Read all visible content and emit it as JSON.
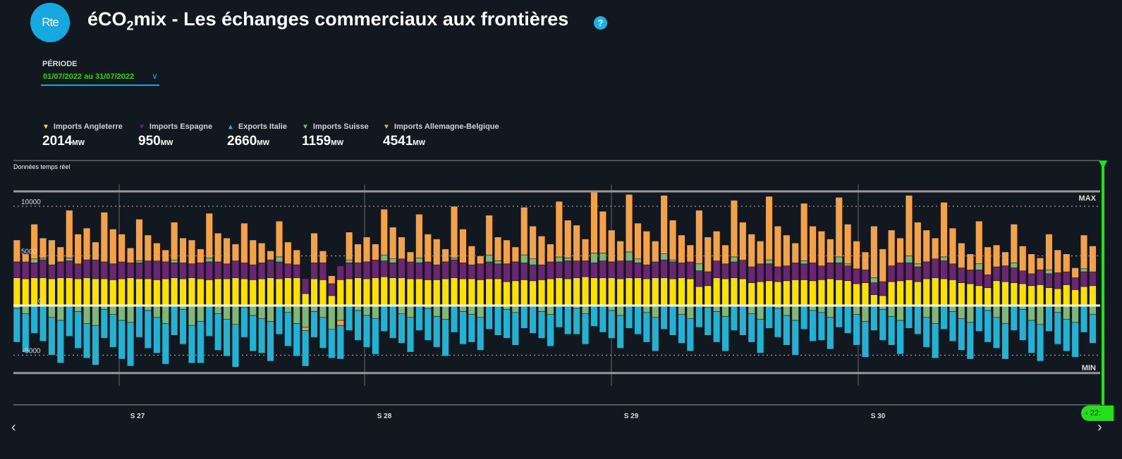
{
  "header": {
    "logo_text": "Rte",
    "title_pre": "éCO",
    "title_sub": "2",
    "title_post": "mix - Les échanges commerciaux aux frontières",
    "help_icon": "?"
  },
  "period": {
    "label": "PÉRIODE",
    "value": "01/07/2022 au 31/07/2022"
  },
  "legend": [
    {
      "label": "Imports Angleterre",
      "value": "2014",
      "unit": "MW",
      "color": "#ffe000",
      "direction": "down"
    },
    {
      "label": "Imports Espagne",
      "value": "950",
      "unit": "MW",
      "color": "#6b2673",
      "direction": "down"
    },
    {
      "label": "Exports Italie",
      "value": "2660",
      "unit": "MW",
      "color": "#23b2d3",
      "direction": "up"
    },
    {
      "label": "Imports Suisse",
      "value": "1159",
      "unit": "MW",
      "color": "#7db87a",
      "direction": "down"
    },
    {
      "label": "Imports Allemagne-Belgique",
      "value": "4541",
      "unit": "MW",
      "color": "#f4a24a",
      "direction": "down"
    }
  ],
  "live_label": "Données temps réel",
  "slider_time": "22:",
  "chart_data": {
    "type": "bar",
    "stacked": true,
    "x_start": "2022-07-01",
    "x_end": "2022-07-31",
    "bars_per_day": 4,
    "ylim": [
      -7000,
      12000
    ],
    "yticks": [
      10000,
      5000,
      0,
      -5000
    ],
    "max_label": "MAX",
    "min_label": "MIN",
    "max_value": 11500,
    "min_value": -6800,
    "week_labels": [
      "S 27",
      "S 28",
      "S 29",
      "S 30"
    ],
    "series": [
      {
        "name": "Imports Angleterre",
        "color": "#ffe000",
        "values": [
          2800,
          2700,
          2800,
          2800,
          2700,
          2800,
          2800,
          2700,
          2800,
          2700,
          2700,
          2600,
          2700,
          2800,
          2700,
          2700,
          2600,
          2700,
          2800,
          2700,
          2800,
          2700,
          2600,
          2700,
          2700,
          2800,
          2700,
          2600,
          2700,
          2800,
          2700,
          2800,
          2800,
          1200,
          2700,
          2600,
          1000,
          2600,
          2700,
          2800,
          2700,
          2800,
          2900,
          2800,
          2800,
          2700,
          2700,
          2600,
          2600,
          2700,
          2800,
          2700,
          2700,
          2600,
          2700,
          2700,
          2400,
          2500,
          2600,
          2500,
          2600,
          2700,
          2800,
          2700,
          2800,
          2900,
          2800,
          2800,
          2800,
          2700,
          2800,
          2800,
          2700,
          2800,
          2800,
          2700,
          2800,
          2700,
          1900,
          2000,
          2800,
          2700,
          2800,
          2700,
          2300,
          2400,
          2500,
          2400,
          2500,
          2600,
          2600,
          2500,
          2600,
          2700,
          2600,
          2500,
          2200,
          2300,
          1100,
          1000,
          2400,
          2500,
          2600,
          2400,
          2700,
          2800,
          2700,
          2600,
          2300,
          2200,
          2000,
          1800,
          2500,
          2400,
          2300,
          2200,
          2000,
          2100,
          1800,
          1700,
          2100,
          1600,
          1900,
          2000
        ]
      },
      {
        "name": "Imports Espagne",
        "color": "#6b2673",
        "values": [
          1600,
          1700,
          1500,
          1800,
          1400,
          1600,
          1700,
          1500,
          1800,
          1900,
          1700,
          1600,
          1700,
          1500,
          1600,
          1800,
          1900,
          1700,
          1500,
          1600,
          1400,
          1600,
          1800,
          1700,
          1500,
          1700,
          1600,
          1500,
          1600,
          1800,
          1700,
          1400,
          1300,
          1500,
          1600,
          1700,
          1200,
          1400,
          1600,
          1500,
          1700,
          1800,
          1600,
          1500,
          1900,
          1700,
          1600,
          1800,
          1500,
          1700,
          1800,
          1600,
          1400,
          1600,
          1700,
          1500,
          1800,
          1900,
          1700,
          1600,
          1500,
          1700,
          1600,
          1800,
          1700,
          1600,
          1500,
          1700,
          1600,
          1800,
          1700,
          1500,
          1400,
          1600,
          1800,
          1700,
          1500,
          1700,
          1600,
          1400,
          1700,
          1500,
          1600,
          1800,
          1600,
          1800,
          1700,
          1500,
          1500,
          1700,
          1600,
          1800,
          1400,
          1600,
          1700,
          1500,
          1500,
          1300,
          1200,
          1400,
          1600,
          1800,
          1700,
          1500,
          1700,
          1900,
          1800,
          1600,
          1500,
          1400,
          1600,
          1300,
          1400,
          1600,
          1500,
          1300,
          1200,
          1500,
          1400,
          1600,
          1300,
          1200,
          1500,
          1400
        ]
      },
      {
        "name": "Imports Suisse",
        "color": "#7db87a",
        "values": [
          -300,
          -800,
          400,
          200,
          -1200,
          -1500,
          300,
          -600,
          -1800,
          -2000,
          -400,
          -900,
          -1500,
          -1700,
          200,
          -500,
          -1200,
          -1800,
          300,
          -400,
          -2000,
          -1600,
          400,
          -800,
          -1400,
          -1900,
          -200,
          -1000,
          -1300,
          -1600,
          500,
          -700,
          -1800,
          -2200,
          -600,
          -1200,
          -2400,
          -1500,
          300,
          -500,
          -1000,
          -1300,
          600,
          400,
          -800,
          -1200,
          500,
          -300,
          -1100,
          -1400,
          200,
          -600,
          -900,
          -1200,
          700,
          300,
          -400,
          -700,
          800,
          600,
          -600,
          -900,
          500,
          300,
          -300,
          -800,
          1000,
          800,
          -500,
          -1000,
          900,
          400,
          -700,
          -1200,
          600,
          200,
          -900,
          -1300,
          700,
          -200,
          -600,
          -1100,
          500,
          100,
          -800,
          -1400,
          400,
          -300,
          -1000,
          -1500,
          300,
          -500,
          -700,
          -1200,
          600,
          200,
          -900,
          -1600,
          500,
          -400,
          -1100,
          -1500,
          700,
          300,
          -1200,
          -1800,
          400,
          -600,
          -1300,
          -1700,
          600,
          -500,
          -1200,
          -1800,
          500,
          -400,
          -1500,
          -1900,
          400,
          -700,
          -1400,
          -1700,
          300,
          -900
        ]
      },
      {
        "name": "Imports Allemagne-Belgique",
        "color": "#f4a24a",
        "values": [
          2200,
          800,
          3500,
          2000,
          2500,
          1500,
          4800,
          3000,
          3200,
          1800,
          5000,
          3500,
          2800,
          1500,
          4200,
          2600,
          1800,
          1200,
          3800,
          2500,
          2400,
          1400,
          4500,
          2900,
          2600,
          1700,
          4000,
          2500,
          2000,
          900,
          3600,
          2200,
          1500,
          -300,
          3000,
          1200,
          800,
          -500,
          2800,
          1900,
          2500,
          1600,
          4600,
          3200,
          2200,
          1000,
          4400,
          2800,
          2600,
          1300,
          5200,
          3400,
          1900,
          800,
          4000,
          2400,
          2400,
          1500,
          4800,
          3300,
          2900,
          1800,
          5600,
          3800,
          3600,
          2200,
          6200,
          4200,
          3200,
          2000,
          5800,
          3600,
          3400,
          2100,
          5900,
          4000,
          2800,
          1700,
          5400,
          3500,
          3000,
          1900,
          5700,
          3800,
          3300,
          2300,
          6400,
          4100,
          3100,
          2000,
          5800,
          3700,
          3500,
          2400,
          6000,
          4000,
          2800,
          1800,
          5200,
          3300,
          3600,
          2500,
          6100,
          4200,
          3200,
          2100,
          5500,
          3600,
          2500,
          1600,
          4300,
          2800,
          2200,
          1400,
          3900,
          2500,
          2000,
          1200,
          3600,
          2300,
          1800,
          1000,
          3400,
          2600
        ]
      },
      {
        "name": "Exports Italie",
        "color": "#23b2d3",
        "values": [
          -3400,
          -3900,
          -2800,
          -3600,
          -3800,
          -4300,
          -3100,
          -3700,
          -3500,
          -4000,
          -2900,
          -3300,
          -3900,
          -4400,
          -3200,
          -3800,
          -3600,
          -4100,
          -3000,
          -3500,
          -3800,
          -4200,
          -3100,
          -3700,
          -3700,
          -4300,
          -3000,
          -3600,
          -3500,
          -4000,
          -2900,
          -3400,
          -3300,
          -3600,
          -2600,
          -3100,
          -2900,
          -3400,
          -2500,
          -3000,
          -3200,
          -3600,
          -2600,
          -3300,
          -3000,
          -3500,
          -2500,
          -3200,
          -3100,
          -3700,
          -2700,
          -3300,
          -2800,
          -3300,
          -2400,
          -3000,
          -2900,
          -3300,
          -2300,
          -2800,
          -2700,
          -3200,
          -2200,
          -2900,
          -2600,
          -3100,
          -2100,
          -2700,
          -2800,
          -3300,
          -2300,
          -2900,
          -3000,
          -3400,
          -2400,
          -3000,
          -2900,
          -3300,
          -2200,
          -2800,
          -3100,
          -3500,
          -2500,
          -3000,
          -2900,
          -3400,
          -2300,
          -2900,
          -3000,
          -3500,
          -2400,
          -3100,
          -2800,
          -3200,
          -2200,
          -2800,
          -3100,
          -3600,
          -2500,
          -3100,
          -2900,
          -3400,
          -2300,
          -2900,
          -3000,
          -3500,
          -2400,
          -3000,
          -3200,
          -3700,
          -2600,
          -3200,
          -3100,
          -3600,
          -2500,
          -3100,
          -3300,
          -3700,
          -2600,
          -3200,
          -3200,
          -3500,
          -2700,
          -2900
        ]
      }
    ]
  }
}
